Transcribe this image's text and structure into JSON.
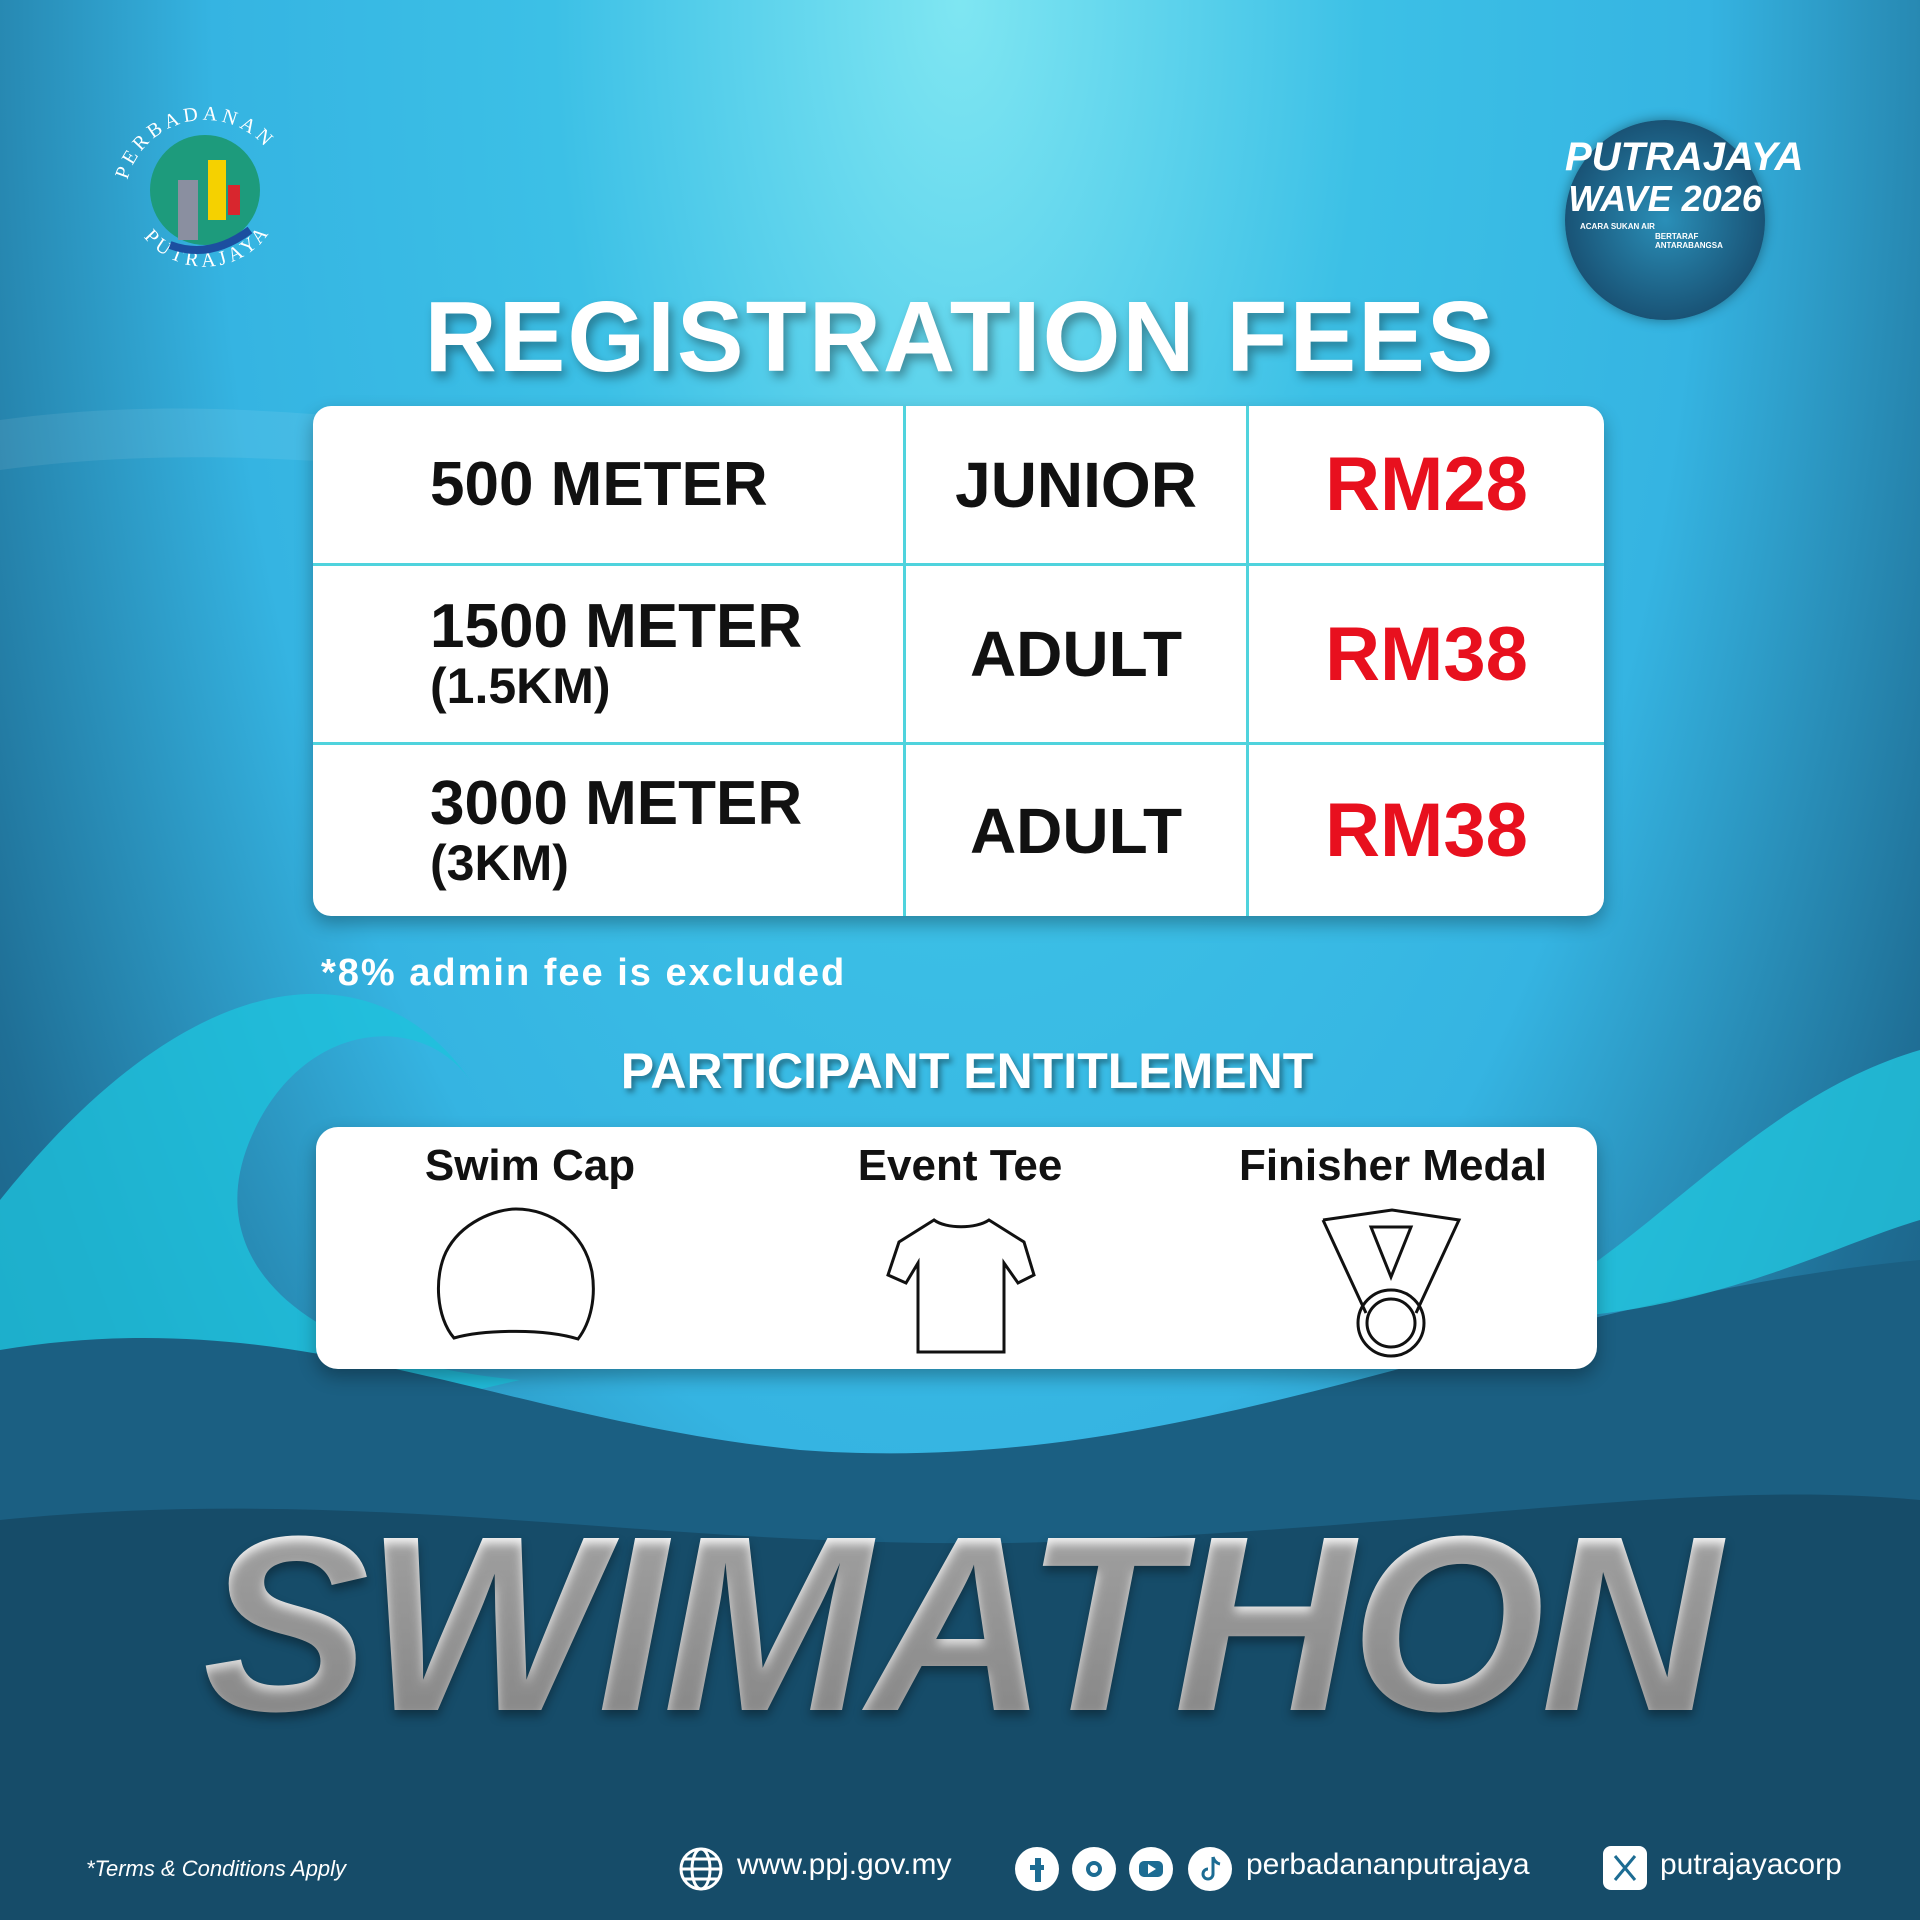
{
  "logo": {
    "top_text": "PERBADANAN",
    "bottom_text": "PUTRAJAYA"
  },
  "event_badge": {
    "line1": "PUTRAJAYA",
    "line2": "WAVE 2026",
    "tag1": "ACARA SUKAN AIR",
    "tag2": "BERTARAF ANTARABANGSA"
  },
  "title": "REGISTRATION FEES",
  "fees": {
    "rows": [
      {
        "distance": "500 METER",
        "category": "JUNIOR",
        "fee": "RM28"
      },
      {
        "distance": "1500 METER",
        "sub": "(1.5KM)",
        "category": "ADULT",
        "fee": "RM38"
      },
      {
        "distance": "3000 METER",
        "sub": "(3KM)",
        "category": "ADULT",
        "fee": "RM38"
      }
    ]
  },
  "note": "*8% admin fee is excluded",
  "entitlement": {
    "heading": "PARTICIPANT ENTITLEMENT",
    "items": [
      "Swim Cap",
      "Event Tee",
      "Finisher Medal"
    ]
  },
  "event_name": "SWIMATHON",
  "footer": {
    "terms": "*Terms & Conditions Apply",
    "website": "www.ppj.gov.my",
    "social": "perbadananputrajaya",
    "x_handle": "putrajayacorp"
  }
}
